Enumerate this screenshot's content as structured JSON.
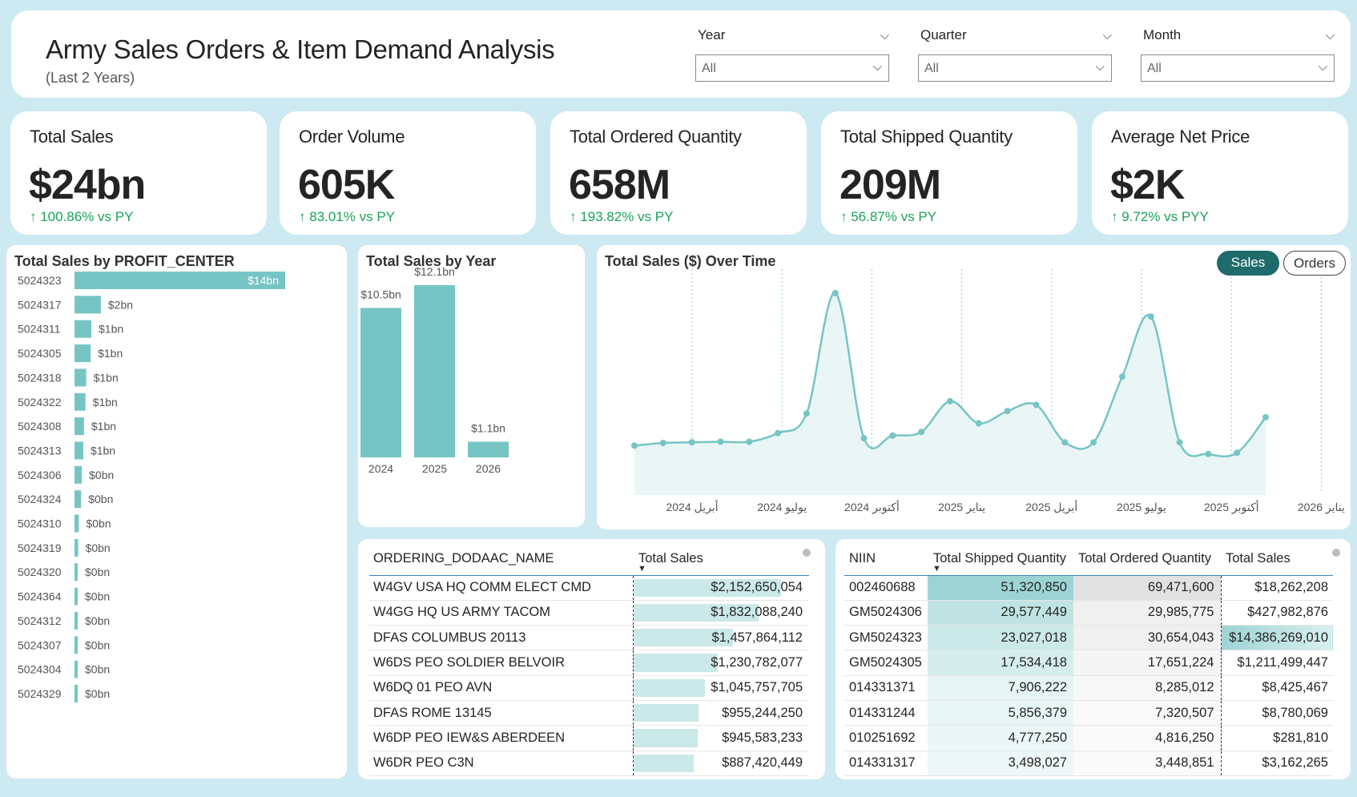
{
  "header": {
    "title": "Army Sales Orders & Item Demand Analysis",
    "subtitle": "(Last 2 Years)",
    "slicers": [
      {
        "label": "Year",
        "value": "All"
      },
      {
        "label": "Quarter",
        "value": "All"
      },
      {
        "label": "Month",
        "value": "All"
      }
    ]
  },
  "kpis": [
    {
      "label": "Total Sales",
      "value": "$24bn",
      "delta": "↑ 100.86% vs PY"
    },
    {
      "label": "Order Volume",
      "value": "605K",
      "delta": "↑ 83.01% vs PY"
    },
    {
      "label": "Total Ordered Quantity",
      "value": "658M",
      "delta": "↑ 193.82% vs PY"
    },
    {
      "label": "Total Shipped Quantity",
      "value": "209M",
      "delta": "↑ 56.87% vs PY"
    },
    {
      "label": "Average Net Price",
      "value": "$2K",
      "delta": "↑ 9.72% vs PYY"
    }
  ],
  "colors": {
    "accent": "#76c5c4",
    "delta_up": "#1aa35a",
    "background": "#cdeaf2",
    "toggle_active": "#1f6b6b"
  },
  "profit_center": {
    "title": "Total Sales by PROFIT_CENTER",
    "chart_data": {
      "type": "bar",
      "orientation": "horizontal",
      "categories": [
        "5024323",
        "5024317",
        "5024311",
        "5024305",
        "5024318",
        "5024322",
        "5024308",
        "5024313",
        "5024306",
        "5024324",
        "5024310",
        "5024319",
        "5024320",
        "5024364",
        "5024312",
        "5024307",
        "5024304",
        "5024329"
      ],
      "values": [
        14.39,
        1.8,
        1.15,
        1.1,
        0.8,
        0.75,
        0.65,
        0.6,
        0.5,
        0.45,
        0.3,
        0.25,
        0.2,
        0.17,
        0.15,
        0.12,
        0.1,
        0.07
      ],
      "labels": [
        "$14bn",
        "$2bn",
        "$1bn",
        "$1bn",
        "$1bn",
        "$1bn",
        "$1bn",
        "$1bn",
        "$0bn",
        "$0bn",
        "$0bn",
        "$0bn",
        "$0bn",
        "$0bn",
        "$0bn",
        "$0bn",
        "$0bn",
        "$0bn"
      ]
    }
  },
  "by_year": {
    "title": "Total Sales by Year",
    "chart_data": {
      "type": "bar",
      "categories": [
        "2024",
        "2025",
        "2026"
      ],
      "values": [
        10.5,
        12.1,
        1.1
      ],
      "labels": [
        "$10.5bn",
        "$12.1bn",
        "$1.1bn"
      ]
    }
  },
  "over_time": {
    "title": "Total Sales ($) Over Time",
    "toggle": {
      "sales": "Sales",
      "orders": "Orders"
    },
    "chart_data": {
      "type": "area",
      "tick_labels": [
        "أبريل 2024",
        "يوليو 2024",
        "أكتوبر 2024",
        "يناير 2025",
        "أبريل 2025",
        "يوليو 2025",
        "أكتوبر 2025",
        "يناير 2026"
      ],
      "values": [
        0.28,
        0.5,
        0.55,
        0.6,
        0.6,
        1.3,
        2.9,
        12.7,
        0.88,
        1.1,
        1.4,
        3.9,
        2.1,
        3.1,
        3.6,
        0.55,
        0.55,
        5.9,
        10.8,
        0.55,
        -0.4,
        -0.3,
        2.6
      ],
      "ylim": [
        -1,
        14
      ]
    }
  },
  "dodaac_table": {
    "columns": [
      "ORDERING_DODAAC_NAME",
      "Total Sales"
    ],
    "rows": [
      {
        "name": "W4GV USA HQ COMM ELECT CMD",
        "sales": "$2,152,650,054",
        "frac": 1.0
      },
      {
        "name": "W4GG HQ US ARMY TACOM",
        "sales": "$1,832,088,240",
        "frac": 0.851
      },
      {
        "name": "DFAS COLUMBUS 20113",
        "sales": "$1,457,864,112",
        "frac": 0.677
      },
      {
        "name": "W6DS PEO SOLDIER BELVOIR",
        "sales": "$1,230,782,077",
        "frac": 0.572
      },
      {
        "name": "W6DQ 01 PEO AVN",
        "sales": "$1,045,757,705",
        "frac": 0.486
      },
      {
        "name": "DFAS ROME 13145",
        "sales": "$955,244,250",
        "frac": 0.444
      },
      {
        "name": "W6DP PEO IEW&S ABERDEEN",
        "sales": "$945,583,233",
        "frac": 0.439
      },
      {
        "name": "W6DR PEO C3N",
        "sales": "$887,420,449",
        "frac": 0.412
      }
    ]
  },
  "niin_table": {
    "columns": [
      "NIIN",
      "Total Shipped Quantity",
      "Total Ordered Quantity",
      "Total Sales"
    ],
    "rows": [
      {
        "niin": "002460688",
        "shipped": "51,320,850",
        "ordered": "69,471,600",
        "sales": "$18,262,208",
        "ship_level": 1.0,
        "ord_level": 1.0,
        "sales_level": 0.0
      },
      {
        "niin": "GM5024306",
        "shipped": "29,577,449",
        "ordered": "29,985,775",
        "sales": "$427,982,876",
        "ship_level": 0.58,
        "ord_level": 0.43,
        "sales_level": 0.03
      },
      {
        "niin": "GM5024323",
        "shipped": "23,027,018",
        "ordered": "30,654,043",
        "sales": "$14,386,269,010",
        "ship_level": 0.45,
        "ord_level": 0.44,
        "sales_level": 1.0
      },
      {
        "niin": "GM5024305",
        "shipped": "17,534,418",
        "ordered": "17,651,224",
        "sales": "$1,211,499,447",
        "ship_level": 0.34,
        "ord_level": 0.25,
        "sales_level": 0.08
      },
      {
        "niin": "014331371",
        "shipped": "7,906,222",
        "ordered": "8,285,012",
        "sales": "$8,425,467",
        "ship_level": 0.15,
        "ord_level": 0.12,
        "sales_level": 0.0
      },
      {
        "niin": "014331244",
        "shipped": "5,856,379",
        "ordered": "7,320,507",
        "sales": "$8,780,069",
        "ship_level": 0.11,
        "ord_level": 0.1,
        "sales_level": 0.0
      },
      {
        "niin": "010251692",
        "shipped": "4,777,250",
        "ordered": "4,816,250",
        "sales": "$281,810",
        "ship_level": 0.09,
        "ord_level": 0.07,
        "sales_level": 0.0
      },
      {
        "niin": "014331317",
        "shipped": "3,498,027",
        "ordered": "3,448,851",
        "sales": "$3,162,265",
        "ship_level": 0.07,
        "ord_level": 0.05,
        "sales_level": 0.0
      }
    ]
  }
}
